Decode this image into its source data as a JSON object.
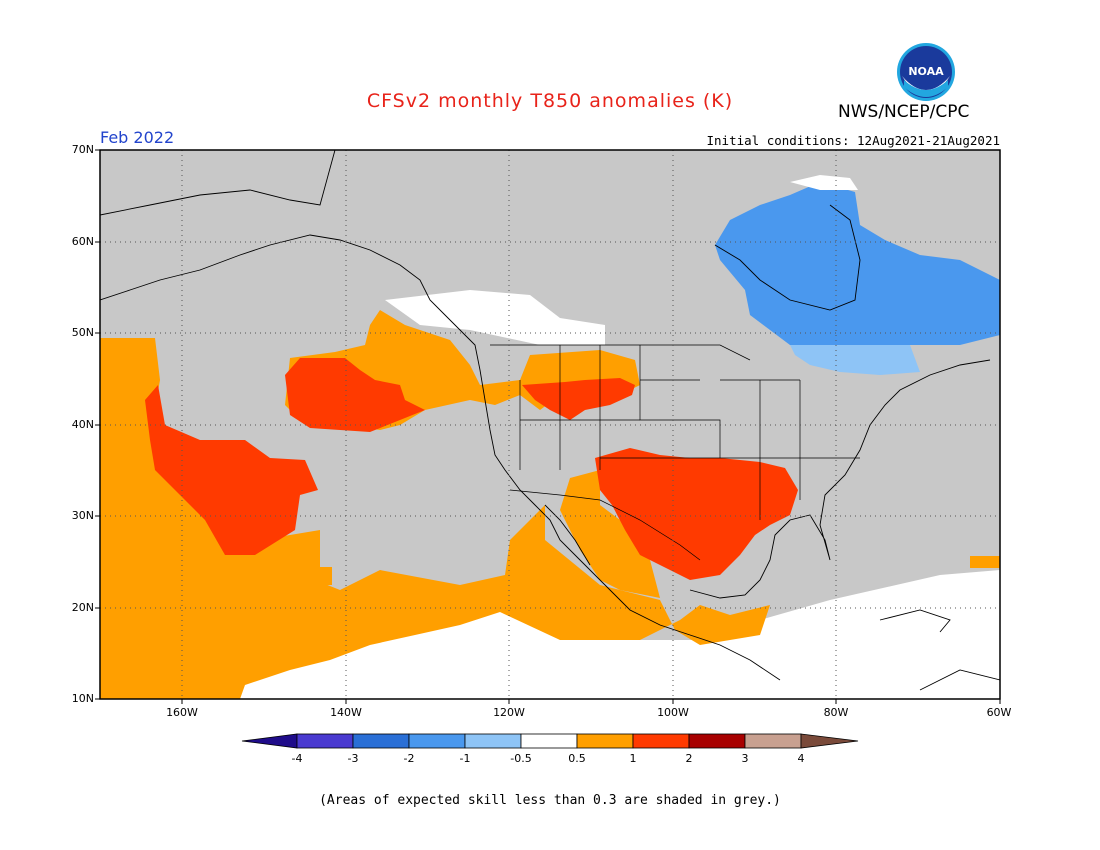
{
  "title": "CFSv2 monthly T850 anomalies (K)",
  "organization": "NWS/NCEP/CPC",
  "logo_text": "NOAA",
  "forecast_month": "Feb 2022",
  "initial_conditions": "Initial conditions: 12Aug2021-21Aug2021",
  "map": {
    "lat_labels": [
      "70N",
      "60N",
      "50N",
      "40N",
      "30N",
      "20N",
      "10N"
    ],
    "lon_labels": [
      "160W",
      "140W",
      "120W",
      "100W",
      "80W",
      "60W"
    ],
    "lat_range": [
      10,
      70
    ],
    "lon_range": [
      -170,
      -60
    ],
    "skill_mask_color": "#c8c8c8"
  },
  "colorbar": {
    "tick_labels": [
      "-4",
      "-3",
      "-2",
      "-1",
      "-0.5",
      "0.5",
      "1",
      "2",
      "3",
      "4"
    ],
    "colors": [
      "#1f0c8a",
      "#4a3ad0",
      "#2a6fd6",
      "#4a98ee",
      "#8ec4f6",
      "#ffffff",
      "#ff9f00",
      "#ff3a00",
      "#a80000",
      "#c8a090",
      "#7a4a3a"
    ]
  },
  "footnote": "(Areas of expected skill less than 0.3 are shaded in grey.)"
}
